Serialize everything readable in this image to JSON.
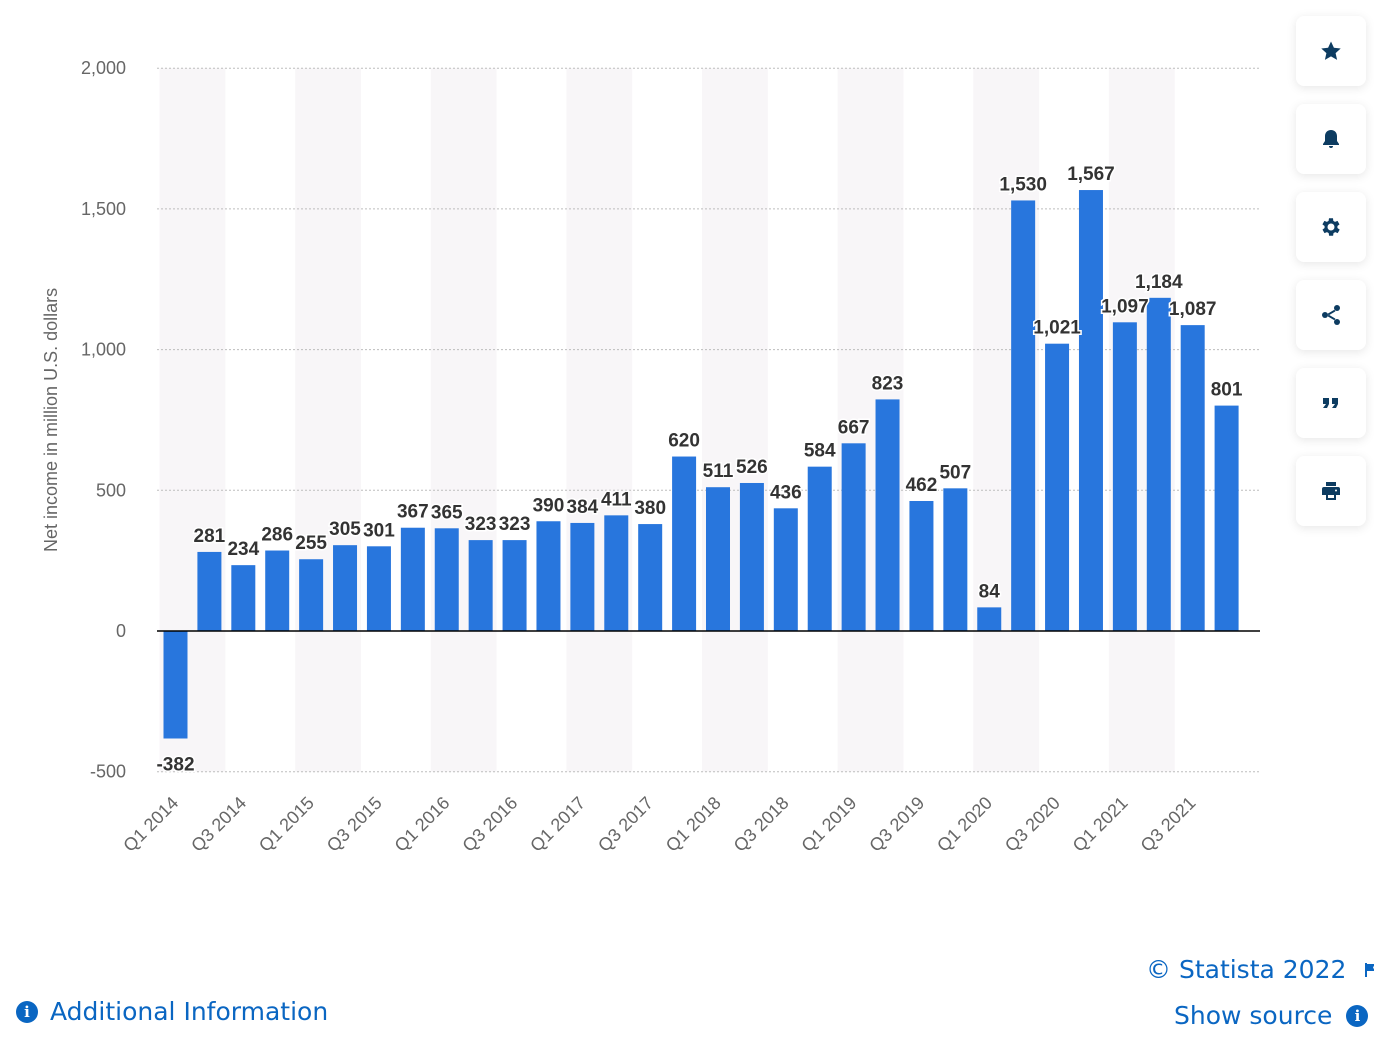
{
  "chart_data": {
    "type": "bar",
    "categories": [
      "Q1 2014",
      "Q2 2014",
      "Q3 2014",
      "Q4 2014",
      "Q1 2015",
      "Q2 2015",
      "Q3 2015",
      "Q4 2015",
      "Q1 2016",
      "Q2 2016",
      "Q3 2016",
      "Q4 2016",
      "Q1 2017",
      "Q2 2017",
      "Q3 2017",
      "Q4 2017",
      "Q1 2018",
      "Q2 2018",
      "Q3 2018",
      "Q4 2018",
      "Q1 2019",
      "Q2 2019",
      "Q3 2019",
      "Q4 2019",
      "Q1 2020",
      "Q2 2020",
      "Q3 2020",
      "Q4 2020",
      "Q1 2021",
      "Q2 2021",
      "Q3 2021",
      "Q4 2021"
    ],
    "values": [
      -382,
      281,
      234,
      286,
      255,
      305,
      301,
      367,
      365,
      323,
      323,
      390,
      384,
      411,
      380,
      620,
      511,
      526,
      436,
      584,
      667,
      823,
      462,
      507,
      84,
      1530,
      1021,
      1567,
      1097,
      1184,
      1087,
      801
    ],
    "value_labels": [
      "-382",
      "281",
      "234",
      "286",
      "255",
      "305",
      "301",
      "367",
      "365",
      "323",
      "323",
      "390",
      "384",
      "411",
      "380",
      "620",
      "511",
      "526",
      "436",
      "584",
      "667",
      "823",
      "462",
      "507",
      "84",
      "1,530",
      "1,021",
      "1,567",
      "1,097",
      "1,184",
      "1,087",
      "801"
    ],
    "tick_labels": [
      "Q1 2014",
      "Q3 2014",
      "Q1 2015",
      "Q3 2015",
      "Q1 2016",
      "Q3 2016",
      "Q1 2017",
      "Q3 2017",
      "Q1 2018",
      "Q3 2018",
      "Q1 2019",
      "Q3 2019",
      "Q1 2020",
      "Q3 2020",
      "Q1 2021",
      "Q3 2021"
    ],
    "yticks": [
      -500,
      0,
      500,
      1000,
      1500,
      2000
    ],
    "ytick_labels": [
      "-500",
      "0",
      "500",
      "1,000",
      "1,500",
      "2,000"
    ],
    "ylim": [
      -500,
      2000
    ],
    "ylabel": "Net income in million U.S. dollars",
    "xlabel": "",
    "title": "",
    "grid": true,
    "bar_color": "#2876dd",
    "stripe_color": "#f8f6f8"
  },
  "toolbar": {
    "buttons": [
      "star-icon",
      "bell-icon",
      "gear-icon",
      "share-icon",
      "quote-icon",
      "print-icon"
    ]
  },
  "footer": {
    "copyright": "© Statista 2022",
    "show_source": "Show source",
    "additional_info": "Additional Information"
  },
  "colors": {
    "link": "#0a66c2",
    "icon": "#0d3c61"
  }
}
